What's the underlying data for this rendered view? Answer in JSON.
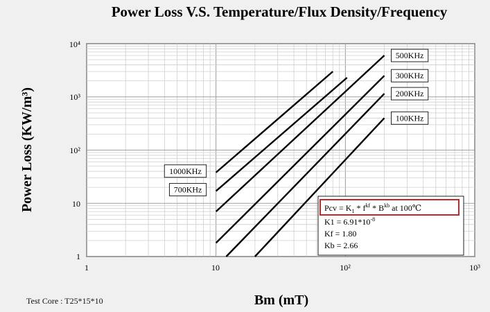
{
  "chart_data": {
    "type": "line",
    "title": "Power Loss V.S. Temperature/Flux Density/Frequency",
    "xlabel": "Bm (mT)",
    "ylabel": "Power Loss (KW/m³)",
    "x_scale": "log",
    "y_scale": "log",
    "xlim": [
      1,
      1000
    ],
    "ylim": [
      1,
      10000
    ],
    "x_ticks": [
      "1",
      "10",
      "10²",
      "10³"
    ],
    "y_ticks": [
      "1",
      "10",
      "10²",
      "10³",
      "10⁴"
    ],
    "grid": true,
    "series": [
      {
        "name": "1000KHz",
        "x": [
          10,
          80
        ],
        "y": [
          38,
          3000
        ]
      },
      {
        "name": "700KHz",
        "x": [
          10,
          103
        ],
        "y": [
          17,
          2300
        ]
      },
      {
        "name": "500KHz",
        "x": [
          10,
          200
        ],
        "y": [
          7,
          6000
        ]
      },
      {
        "name": "300KHz",
        "x": [
          10,
          200
        ],
        "y": [
          1.8,
          2500
        ]
      },
      {
        "name": "200KHz",
        "x": [
          12,
          200
        ],
        "y": [
          1,
          1150
        ]
      },
      {
        "name": "100KHz",
        "x": [
          20,
          200
        ],
        "y": [
          1,
          400
        ]
      }
    ],
    "formula": {
      "equation": "Pcv = K1 * f^kf * B^kb at 100℃",
      "eq_lead": "Pcv = K",
      "eq_k_sub": "1",
      "eq_mid1": " *  f",
      "eq_kf_sup": "kf",
      "eq_mid2": " *  B",
      "eq_kb_sup": "kb",
      "eq_tail": "  at 100℃",
      "k1_lead": "K1   = 6.91*10",
      "k1_exp": "-8",
      "kf": "Kf   = 1.80",
      "kb": "Kb   = 2.66"
    }
  },
  "footer": {
    "test_core": "Test Core : T25*15*10"
  }
}
